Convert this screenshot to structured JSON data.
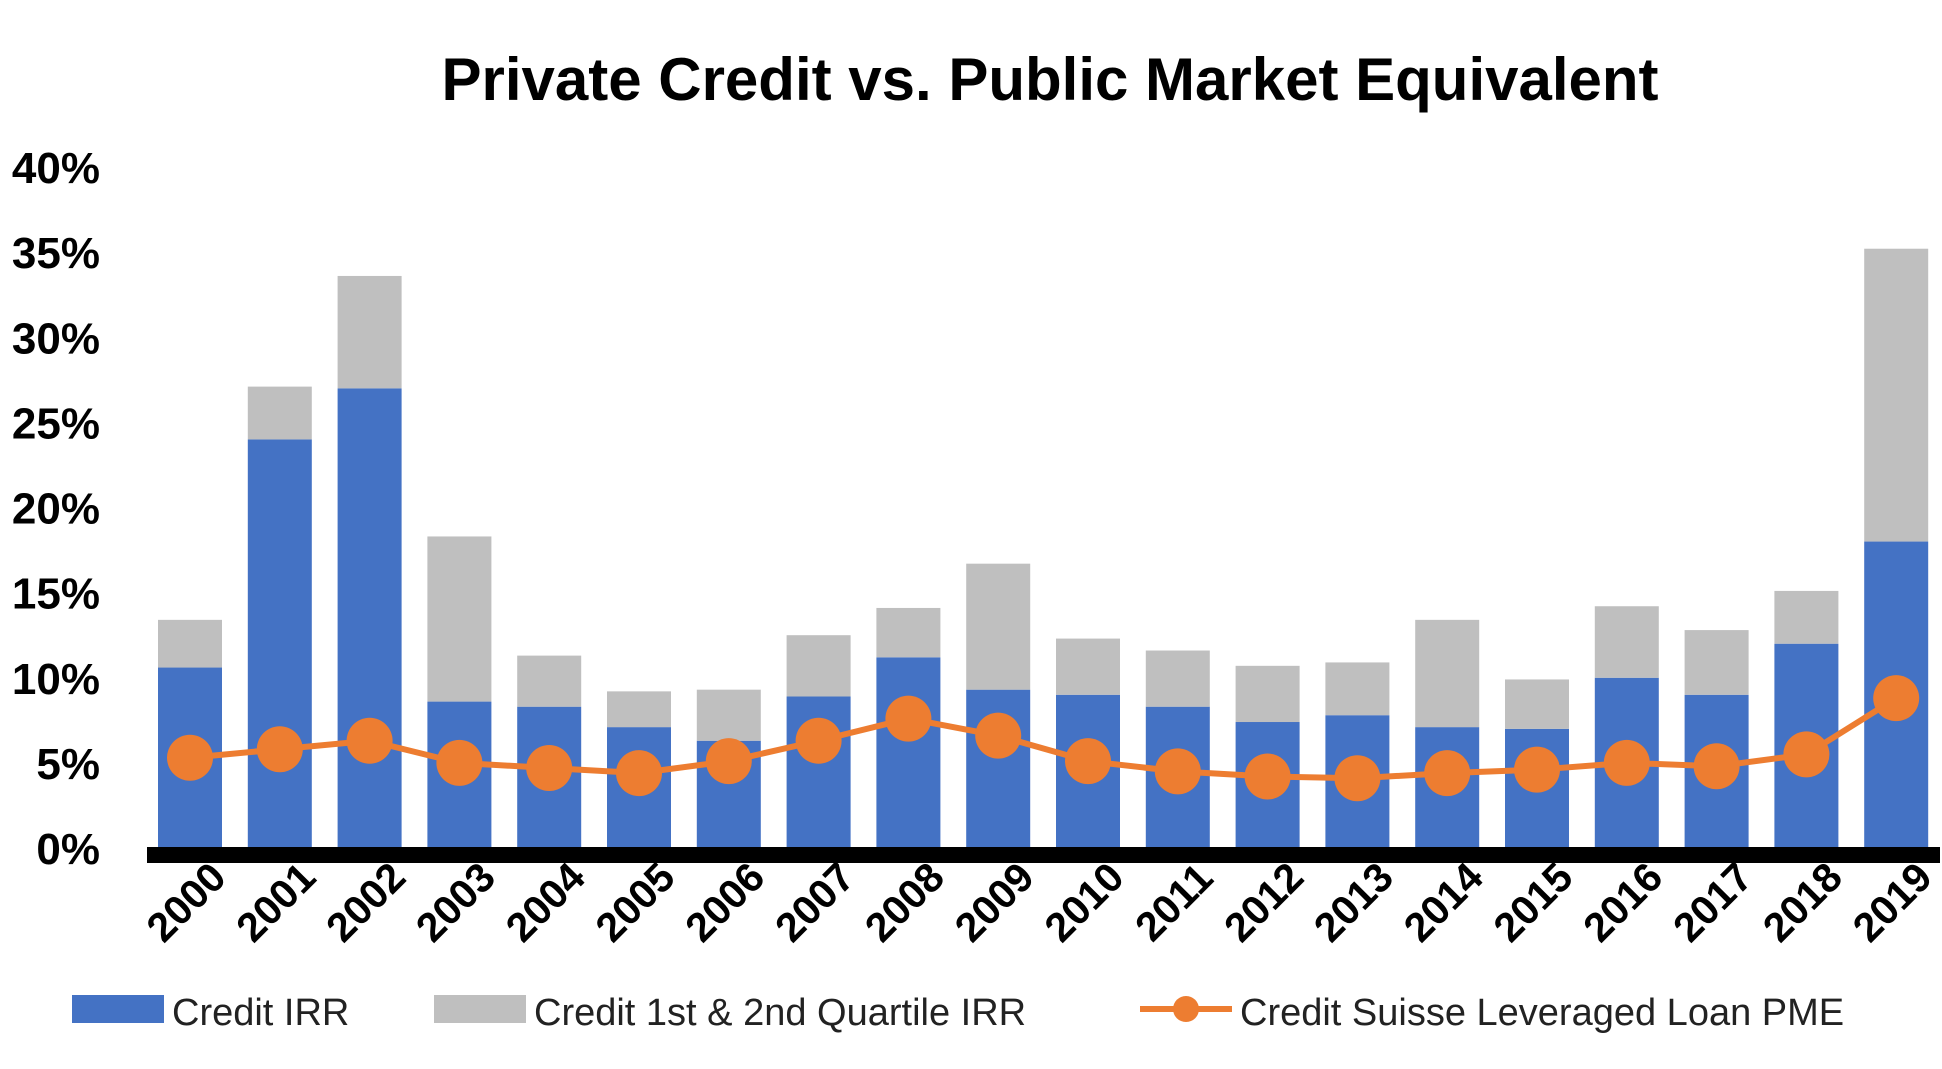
{
  "chart_data": {
    "type": "bar",
    "title": "Private Credit vs. Public Market Equivalent",
    "xlabel": "",
    "ylabel": "",
    "ylim": [
      0,
      40
    ],
    "y_ticks": [
      "0%",
      "5%",
      "10%",
      "15%",
      "20%",
      "25%",
      "30%",
      "35%",
      "40%"
    ],
    "y_tick_values": [
      0,
      5,
      10,
      15,
      20,
      25,
      30,
      35,
      40
    ],
    "categories": [
      "2000",
      "2001",
      "2002",
      "2003",
      "2004",
      "2005",
      "2006",
      "2007",
      "2008",
      "2009",
      "2010",
      "2011",
      "2012",
      "2013",
      "2014",
      "2015",
      "2016",
      "2017",
      "2018",
      "2019"
    ],
    "stacked": true,
    "grid": false,
    "legend_position": "bottom",
    "series": [
      {
        "name": "Credit IRR",
        "type": "bar",
        "color": "#4472C4",
        "values": [
          10.6,
          24.0,
          27.0,
          8.6,
          8.3,
          7.1,
          6.3,
          8.9,
          11.2,
          9.3,
          9.0,
          8.3,
          7.4,
          7.8,
          7.1,
          7.0,
          10.0,
          9.0,
          12.0,
          18.0
        ]
      },
      {
        "name": "Credit 1st & 2nd Quartile IRR",
        "type": "bar",
        "color": "#BFBFBF",
        "values": [
          2.8,
          3.1,
          6.6,
          9.7,
          3.0,
          2.1,
          3.0,
          3.6,
          2.9,
          7.4,
          3.3,
          3.3,
          3.3,
          3.1,
          6.3,
          2.9,
          4.2,
          3.8,
          3.1,
          17.2
        ]
      },
      {
        "name": "Credit Suisse Leveraged Loan PME",
        "type": "line",
        "color": "#ED7D31",
        "values": [
          5.3,
          5.8,
          6.3,
          5.0,
          4.7,
          4.4,
          5.1,
          6.3,
          7.6,
          6.6,
          5.1,
          4.5,
          4.2,
          4.1,
          4.4,
          4.6,
          5.0,
          4.8,
          5.5,
          8.8
        ]
      }
    ]
  }
}
